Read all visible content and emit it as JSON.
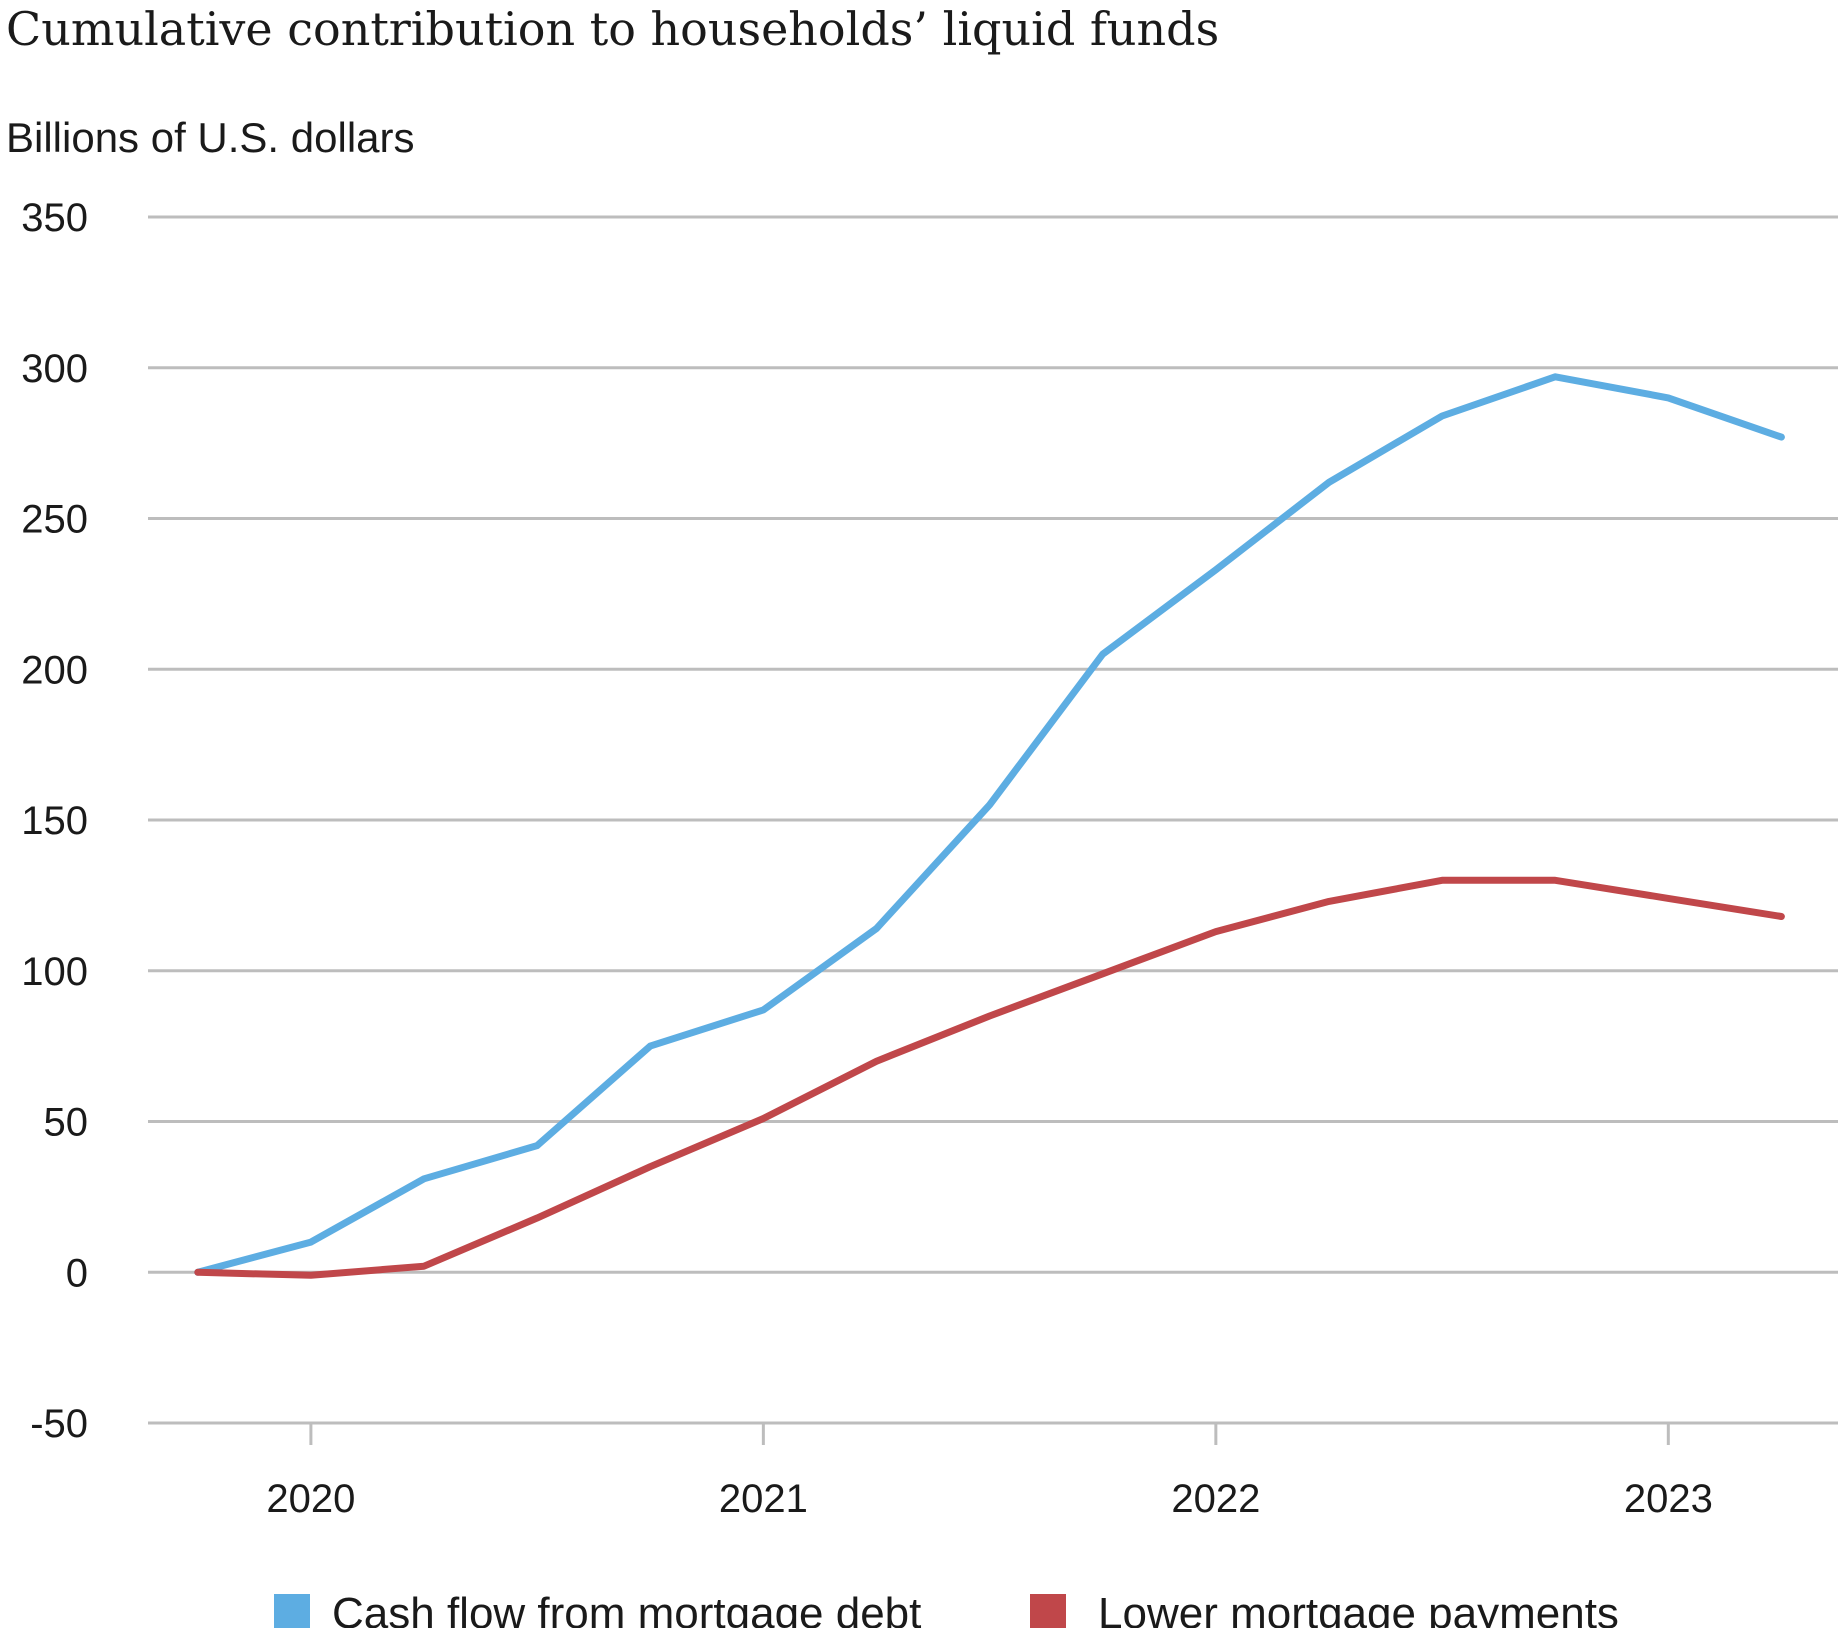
{
  "chart_data": {
    "type": "line",
    "title": "Cumulative contribution to households’ liquid funds",
    "ylabel": "Billions of U.S. dollars",
    "xlabel": "",
    "ylim": [
      -50,
      350
    ],
    "yticks": [
      "350",
      "300",
      "250",
      "200",
      "150",
      "100",
      "50",
      "0",
      "-50"
    ],
    "ytick_values": [
      350,
      300,
      250,
      200,
      150,
      100,
      50,
      0,
      -50
    ],
    "xticks": [
      "2020",
      "2021",
      "2022",
      "2023"
    ],
    "xtick_values": [
      2020.0,
      2021.0,
      2022.0,
      2023.0
    ],
    "xlim": [
      2019.64,
      2023.375
    ],
    "grid": true,
    "legend": "bottom",
    "x": [
      "2019-Q4",
      "2020-Q1",
      "2020-Q2",
      "2020-Q3",
      "2020-Q4",
      "2021-Q1",
      "2021-Q2",
      "2021-Q3",
      "2021-Q4",
      "2022-Q1",
      "2022-Q2",
      "2022-Q3",
      "2022-Q4",
      "2023-Q1",
      "2023-Q2"
    ],
    "series": [
      {
        "name": "Cash flow from mortgage debt",
        "color": "#5dade2",
        "values": [
          0,
          10,
          31,
          42,
          75,
          87,
          114,
          155,
          205,
          233,
          262,
          284,
          297,
          290,
          277
        ]
      },
      {
        "name": "Lower mortgage payments",
        "color": "#c0474a",
        "values": [
          0,
          -1,
          2,
          18,
          35,
          51,
          70,
          85,
          99,
          113,
          123,
          130,
          130,
          124,
          118
        ]
      }
    ]
  }
}
